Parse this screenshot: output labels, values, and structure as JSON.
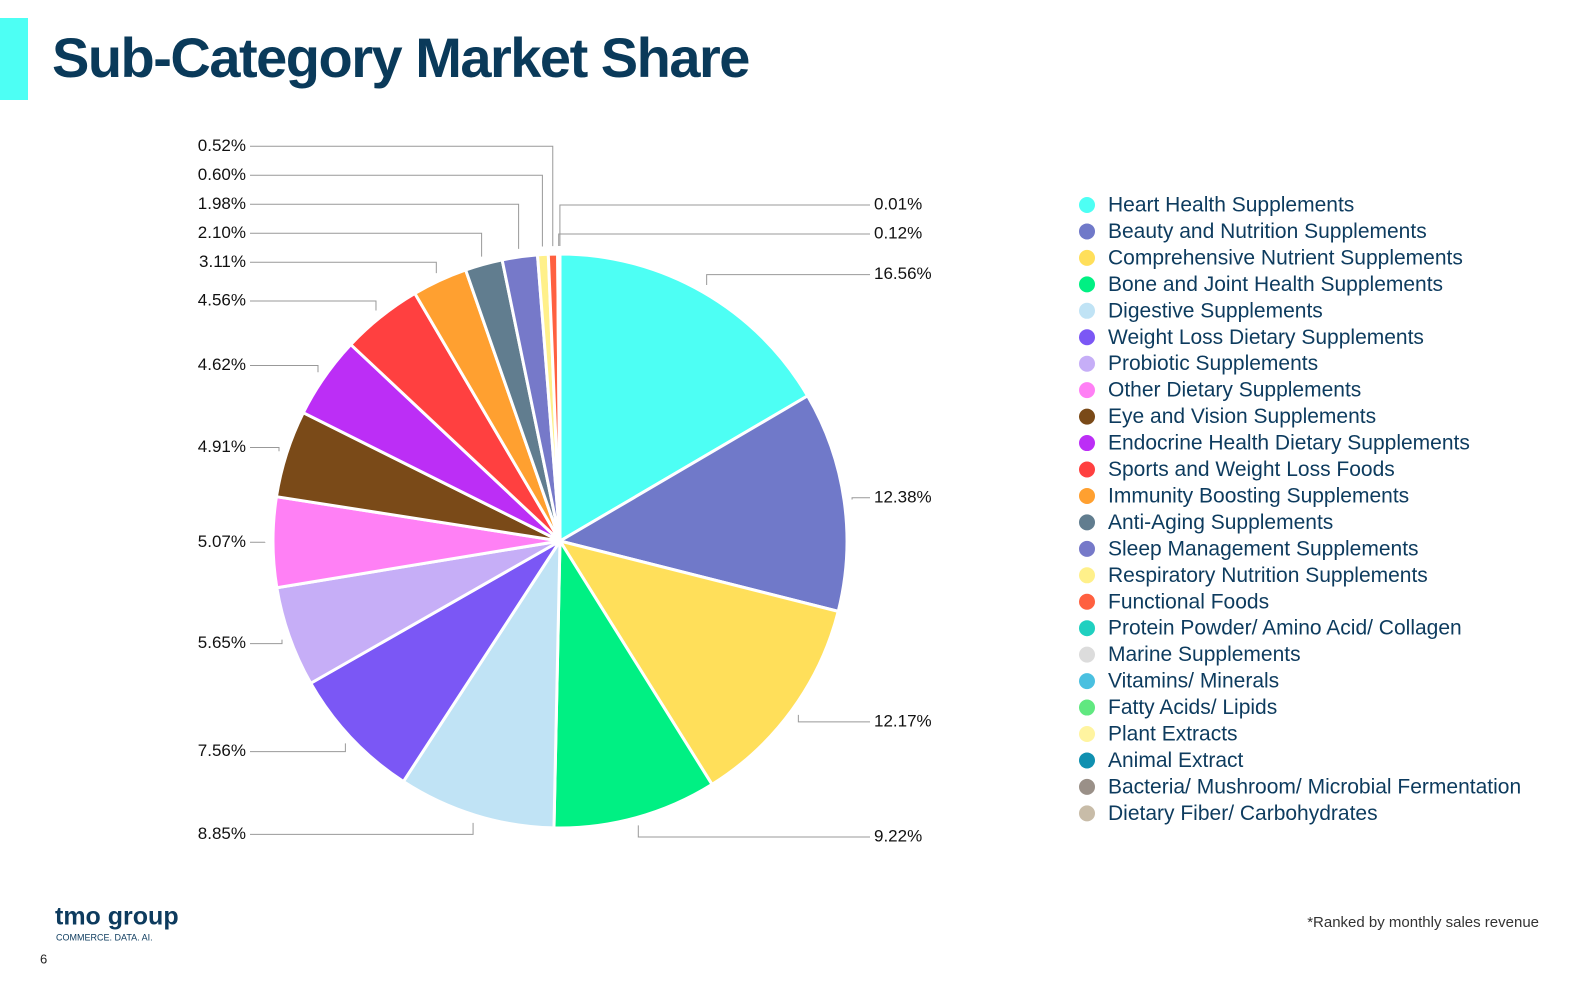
{
  "chart_data": {
    "type": "pie",
    "title": "Sub-Category Market Share",
    "categories": [
      "Heart Health Supplements",
      "Beauty and Nutrition Supplements",
      "Comprehensive Nutrient Supplements",
      "Bone and Joint Health Supplements",
      "Digestive Supplements",
      "Weight Loss Dietary Supplements",
      "Probiotic Supplements",
      "Other Dietary Supplements",
      "Eye and Vision Supplements",
      "Endocrine Health Dietary Supplements",
      "Sports and Weight Loss Foods",
      "Immunity Boosting Supplements",
      "Anti-Aging Supplements",
      "Sleep Management Supplements",
      "Respiratory Nutrition Supplements",
      "Functional Foods",
      "Protein Powder/ Amino Acid/ Collagen",
      "Marine Supplements",
      "Vitamins/ Minerals",
      "Fatty Acids/ Lipids",
      "Plant Extracts",
      "Animal Extract",
      "Bacteria/ Mushroom/ Microbial Fermentation",
      "Dietary Fiber/ Carbohydrates"
    ],
    "values": [
      16.56,
      12.38,
      12.17,
      9.22,
      8.85,
      7.56,
      5.65,
      5.07,
      4.91,
      4.62,
      4.56,
      3.11,
      2.1,
      1.98,
      0.6,
      0.52,
      0.12,
      0.01,
      null,
      null,
      null,
      null,
      null,
      null
    ],
    "value_labels": [
      "16.56%",
      "12.38%",
      "12.17%",
      "9.22%",
      "8.85%",
      "7.56%",
      "5.65%",
      "5.07%",
      "4.91%",
      "4.62%",
      "4.56%",
      "3.11%",
      "2.10%",
      "1.98%",
      "0.60%",
      "0.52%",
      "0.12%",
      "0.01%",
      null,
      null,
      null,
      null,
      null,
      null
    ],
    "colors": [
      "#4dfff4",
      "#7079c9",
      "#ffdf5a",
      "#00f083",
      "#c0e3f5",
      "#7b57f5",
      "#c6aef7",
      "#ff80f5",
      "#7a4a18",
      "#bc2ef6",
      "#ff4040",
      "#ffa030",
      "#617d8f",
      "#7679c9",
      "#fff08a",
      "#ff6040",
      "#20d0c0",
      "#dcdcdc",
      "#4ac0e0",
      "#60e880",
      "#fff4a0",
      "#1090b0",
      "#9a9088",
      "#c8bca8"
    ],
    "legend": "right",
    "footnote": "*Ranked by monthly sales revenue"
  },
  "logo": {
    "name": "tmo group",
    "tagline": "COMMERCE. DATA. AI."
  },
  "page_number": "6"
}
